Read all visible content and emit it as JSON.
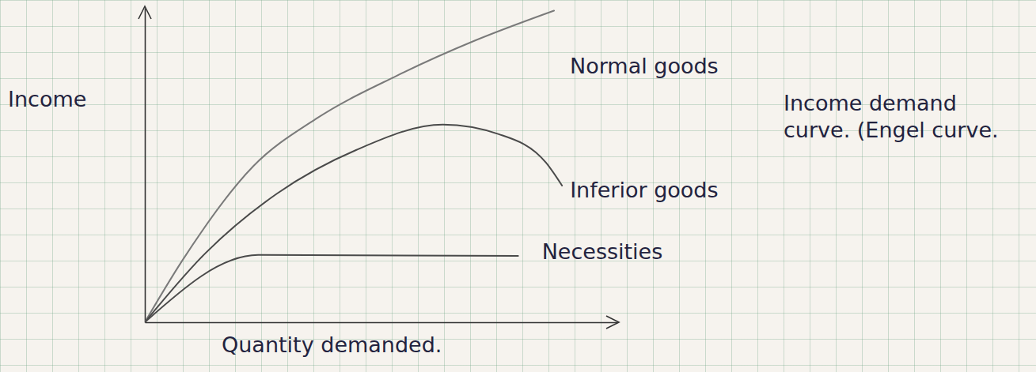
{
  "chart_data": {
    "type": "line",
    "x_label": "Quantity demanded.",
    "y_label": "Income",
    "annotations": [
      "Income demand curve. (Engel curve."
    ],
    "xlim": [
      0,
      100
    ],
    "ylim": [
      0,
      115
    ],
    "tick_labels": false,
    "series": [
      {
        "name": "Normal goods",
        "color": "#7a7a7a",
        "x": [
          0,
          7.9,
          22.9,
          36.3,
          53.1,
          69.8,
          86.6
        ],
        "values": [
          0,
          22.5,
          57,
          74.5,
          90,
          103,
          114
        ]
      },
      {
        "name": "Inferior goods",
        "color": "#4a4a4a",
        "x": [
          0,
          12.9,
          28,
          44.7,
          63.1,
          74.9,
          84.9,
          88.3
        ],
        "values": [
          0,
          25.4,
          47.1,
          63,
          72.3,
          68.8,
          58.4,
          50
        ]
      },
      {
        "name": "Necessities",
        "color": "#4a4a4a",
        "x": [
          0,
          24,
          79
        ],
        "values": [
          0,
          24.6,
          24.3
        ]
      }
    ]
  }
}
